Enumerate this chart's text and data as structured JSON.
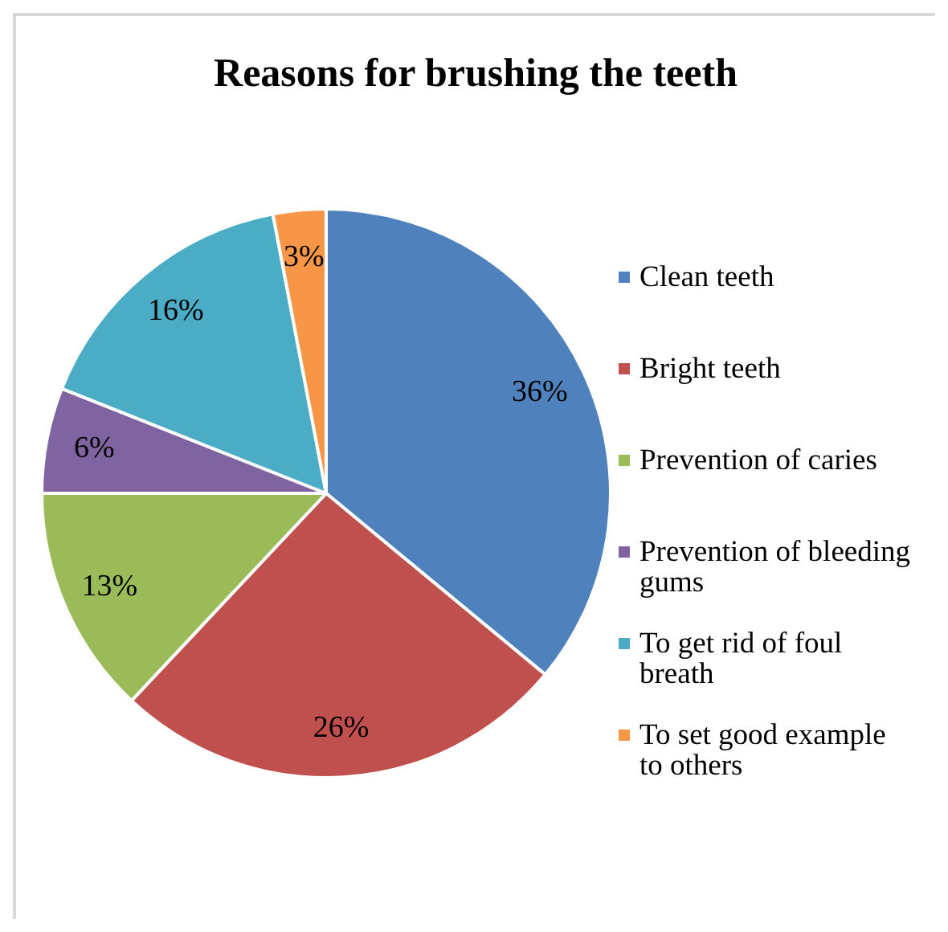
{
  "chart_data": {
    "type": "pie",
    "title": "Reasons for brushing the teeth",
    "categories": [
      "Clean teeth",
      "Bright teeth",
      "Prevention of caries",
      "Prevention of bleeding gums",
      "To get rid of foul breath",
      "To set good example to others"
    ],
    "values": [
      36,
      26,
      13,
      6,
      16,
      3
    ],
    "colors": [
      "#4f81bd",
      "#c0504d",
      "#9bbb59",
      "#8064a2",
      "#4bacc6",
      "#f79646"
    ],
    "value_labels": [
      "36%",
      "26%",
      "13%",
      "6%",
      "16%",
      "3%"
    ],
    "legend": "right"
  }
}
